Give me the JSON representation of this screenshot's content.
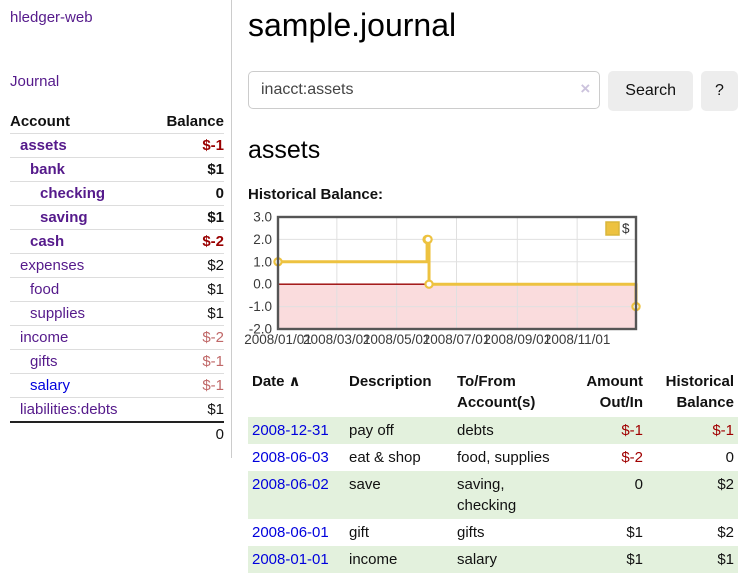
{
  "app": {
    "brand": "hledger-web",
    "nav_journal": "Journal"
  },
  "sidebar": {
    "header": {
      "account": "Account",
      "balance": "Balance"
    },
    "accounts": [
      {
        "name": "assets",
        "depth": 1,
        "balance": "$-1",
        "bold": true,
        "neg": "strong"
      },
      {
        "name": "bank",
        "depth": 2,
        "balance": "$1",
        "bold": true
      },
      {
        "name": "checking",
        "depth": 3,
        "balance": "0",
        "bold": true
      },
      {
        "name": "saving",
        "depth": 3,
        "balance": "$1",
        "bold": true
      },
      {
        "name": "cash",
        "depth": 2,
        "balance": "$-2",
        "bold": true,
        "neg": "strong"
      },
      {
        "name": "expenses",
        "depth": 1,
        "balance": "$2"
      },
      {
        "name": "food",
        "depth": 2,
        "balance": "$1"
      },
      {
        "name": "supplies",
        "depth": 2,
        "balance": "$1"
      },
      {
        "name": "income",
        "depth": 1,
        "balance": "$-2",
        "neg": "soft"
      },
      {
        "name": "gifts",
        "depth": 2,
        "balance": "$-1",
        "neg": "soft"
      },
      {
        "name": "salary",
        "depth": 2,
        "balance": "$-1",
        "neg": "soft",
        "link": "blue"
      },
      {
        "name": "liabilities:debts",
        "depth": 1,
        "balance": "$1"
      }
    ],
    "total": "0"
  },
  "header": {
    "title": "sample.journal"
  },
  "search": {
    "value": "inacct:assets",
    "clear_icon": "×",
    "button": "Search",
    "help": "?"
  },
  "account_page": {
    "heading": "assets",
    "chart_label": "Historical Balance:"
  },
  "chart_data": {
    "type": "line",
    "step": true,
    "title": "Historical Balance",
    "series": [
      {
        "name": "$",
        "color": "#edc240",
        "points": [
          [
            "2008-01-01",
            1
          ],
          [
            "2008-06-01",
            2
          ],
          [
            "2008-06-02",
            2
          ],
          [
            "2008-06-03",
            0
          ],
          [
            "2008-12-31",
            -1
          ]
        ]
      }
    ],
    "xlim": [
      "2008-01-01",
      "2008-12-31"
    ],
    "ylim": [
      -2,
      3
    ],
    "yticks": [
      "3.0",
      "2.0",
      "1.0",
      "0.0",
      "-1.0",
      "-2.0"
    ],
    "ytick_values": [
      3,
      2,
      1,
      0,
      -1,
      -2
    ],
    "xticks": [
      "2008/01/01",
      "2008/03/01",
      "2008/05/01",
      "2008/07/01",
      "2008/09/01",
      "2008/11/01"
    ],
    "legend": "$",
    "legend_position": "top-right",
    "grid": true,
    "negative_region_color": "#fadcdd",
    "zero_line_color": "#990000",
    "border_color": "#555555",
    "grid_color": "#e0e0e0"
  },
  "register": {
    "columns": [
      {
        "label": "Date",
        "sort": "asc"
      },
      {
        "label": "Description"
      },
      {
        "label": "To/From\nAccount(s)"
      },
      {
        "label": "Amount\nOut/In",
        "align": "right"
      },
      {
        "label": "Historical\nBalance",
        "align": "right"
      }
    ],
    "sort_icon": "∧",
    "rows": [
      {
        "date": "2008-12-31",
        "description": "pay off",
        "accounts": "debts",
        "amount": "$-1",
        "amount_neg": true,
        "balance": "$-1",
        "balance_neg": true
      },
      {
        "date": "2008-06-03",
        "description": "eat & shop",
        "accounts": "food, supplies",
        "amount": "$-2",
        "amount_neg": true,
        "balance": "0"
      },
      {
        "date": "2008-06-02",
        "description": "save",
        "accounts": "saving,\nchecking",
        "amount": "0",
        "balance": "$2"
      },
      {
        "date": "2008-06-01",
        "description": "gift",
        "accounts": "gifts",
        "amount": "$1",
        "balance": "$2"
      },
      {
        "date": "2008-01-01",
        "description": "income",
        "accounts": "salary",
        "amount": "$1",
        "balance": "$1"
      }
    ]
  }
}
